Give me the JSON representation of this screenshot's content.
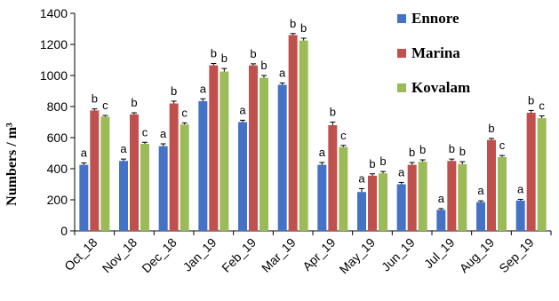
{
  "chart_data": {
    "type": "bar",
    "ylabel": "Numbers / m³",
    "ylim": [
      0,
      1400
    ],
    "yticks": [
      0,
      200,
      400,
      600,
      800,
      1000,
      1200,
      1400
    ],
    "categories": [
      "Oct_18",
      "Nov_18",
      "Dec_18",
      "Jan_19",
      "Feb_19",
      "Mar_19",
      "Apr_19",
      "May_19",
      "Jun_19",
      "Jul_19",
      "Aug_19",
      "Sep_19"
    ],
    "series": [
      {
        "name": "Ennore",
        "color": "#4472C4",
        "values": [
          425,
          450,
          545,
          835,
          700,
          940,
          425,
          250,
          300,
          135,
          185,
          195
        ],
        "errors": [
          12,
          12,
          15,
          15,
          12,
          12,
          15,
          22,
          12,
          8,
          8,
          8
        ],
        "labels": [
          "a",
          "a",
          "a",
          "a",
          "a",
          "a",
          "a",
          "a",
          "a",
          "a",
          "a",
          "a"
        ]
      },
      {
        "name": "Marina",
        "color": "#C0504D",
        "values": [
          775,
          750,
          820,
          1065,
          1065,
          1260,
          680,
          355,
          425,
          450,
          585,
          760
        ],
        "errors": [
          10,
          10,
          15,
          12,
          10,
          10,
          20,
          12,
          15,
          12,
          10,
          15
        ],
        "labels": [
          "b",
          "b",
          "b",
          "b",
          "b",
          "b",
          "b",
          "b",
          "b",
          "b",
          "b",
          "b"
        ]
      },
      {
        "name": "Kovalam",
        "color": "#9BBB59",
        "values": [
          735,
          560,
          685,
          1025,
          985,
          1225,
          540,
          370,
          445,
          430,
          475,
          725
        ],
        "errors": [
          8,
          10,
          10,
          20,
          15,
          15,
          10,
          12,
          12,
          15,
          10,
          15
        ],
        "labels": [
          "c",
          "c",
          "c",
          "b",
          "b",
          "b",
          "c",
          "b",
          "b",
          "b",
          "c",
          "c"
        ]
      }
    ],
    "legend_position": "top-right",
    "grid": false
  }
}
